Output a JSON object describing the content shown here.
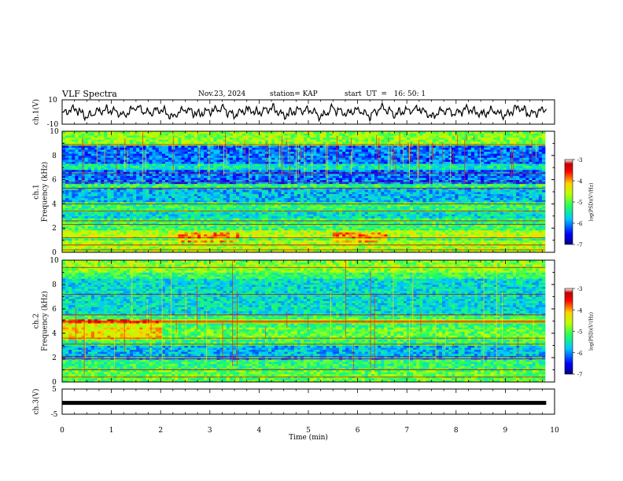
{
  "header": {
    "title": "VLF Spectra",
    "date": "Nov.23, 2024",
    "station": "station= KAP",
    "start": "start  UT  =   16: 50: 1"
  },
  "colorbar": {
    "label": "log(PSD)(V²/Hz)",
    "ticks": [
      "-3",
      "-4",
      "-5",
      "-6",
      "-7"
    ],
    "colors": [
      "#000080",
      "#0000ff",
      "#00a0ff",
      "#00ffd0",
      "#20ff40",
      "#a0ff00",
      "#ffff00",
      "#ff9000",
      "#ff0000",
      "#a00000",
      "#ffffff"
    ]
  },
  "chart_data": [
    {
      "type": "line",
      "panel": "ch1-waveform",
      "ylabel": "ch.1(V)",
      "yticks": [
        "10",
        "-10"
      ],
      "ylim": [
        -10,
        10
      ],
      "xlim": [
        0,
        10
      ],
      "note_series": "continuous noisy waveform",
      "x": [
        0,
        0.25,
        0.5,
        0.75,
        1,
        1.25,
        1.5,
        1.75,
        2,
        2.25,
        2.5,
        2.75,
        3,
        3.25,
        3.5,
        3.75,
        4,
        4.25,
        4.5,
        4.75,
        5,
        5.25,
        5.5,
        5.75,
        6,
        6.25,
        6.5,
        6.75,
        7,
        7.25,
        7.5,
        7.75,
        8,
        8.25,
        8.5,
        8.75,
        9,
        9.25,
        9.5,
        9.75,
        9.83
      ],
      "y": [
        -2,
        3,
        -4,
        1,
        2,
        -3,
        4,
        -1,
        2,
        -4,
        3,
        -2,
        1,
        3,
        -3,
        2,
        -1,
        4,
        -3,
        1,
        2,
        -4,
        3,
        -1,
        2,
        -3,
        4,
        -2,
        1,
        3,
        -4,
        2,
        -1,
        3,
        -2,
        1,
        -3,
        4,
        -2,
        1,
        3
      ]
    },
    {
      "type": "heatmap",
      "panel": "ch1-spectrogram",
      "ylabel_top": "ch.1",
      "ylabel": "Frequency (kHz)",
      "yticks": [
        "0",
        "2",
        "4",
        "6",
        "8",
        "10"
      ],
      "ylim": [
        0,
        10
      ],
      "xlim": [
        0,
        9.83
      ],
      "zlabel": "log(PSD)(V²/Hz)",
      "zlim": [
        -7,
        -3
      ]
    },
    {
      "type": "heatmap",
      "panel": "ch2-spectrogram",
      "ylabel_top": "ch.2",
      "ylabel": "Frequency (kHz)",
      "yticks": [
        "0",
        "2",
        "4",
        "6",
        "8",
        "10"
      ],
      "ylim": [
        0,
        10
      ],
      "xlim": [
        0,
        9.83
      ],
      "zlabel": "log(PSD)(V²/Hz)",
      "zlim": [
        -7,
        -3
      ]
    },
    {
      "type": "line",
      "panel": "ch3-waveform",
      "ylabel": "ch.3(V)",
      "yticks": [
        "5",
        "-5"
      ],
      "ylim": [
        -5,
        5
      ],
      "xlim": [
        0,
        10
      ],
      "x": [
        0,
        9.83
      ],
      "y": [
        -0.5,
        -0.5
      ]
    }
  ],
  "xaxis": {
    "label": "Time  (min)",
    "ticks": [
      "0",
      "1",
      "2",
      "3",
      "4",
      "5",
      "6",
      "7",
      "8",
      "9",
      "10"
    ]
  }
}
